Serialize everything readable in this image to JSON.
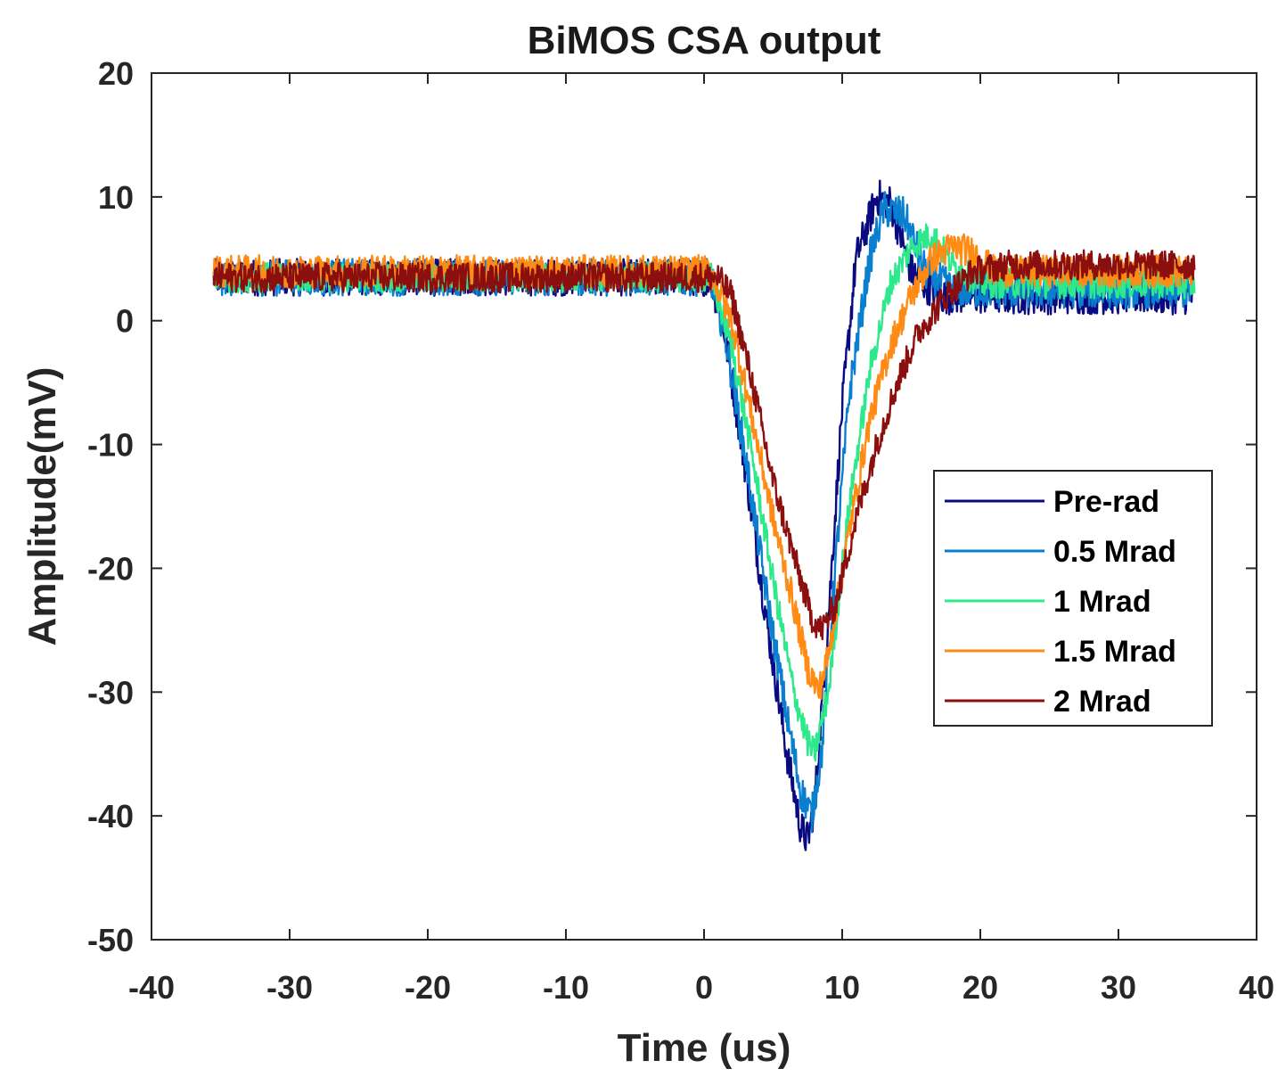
{
  "chart_data": {
    "type": "line",
    "title": "BiMOS CSA output",
    "xlabel": "Time (us)",
    "ylabel": "Amplitude(mV)",
    "xlim": [
      -40,
      40
    ],
    "ylim": [
      -50,
      20
    ],
    "xticks": [
      -40,
      -30,
      -20,
      -10,
      0,
      10,
      20,
      30,
      40
    ],
    "yticks": [
      -50,
      -40,
      -30,
      -20,
      -10,
      0,
      10,
      20
    ],
    "grid": false,
    "legend_position": "right",
    "x_range_data": [
      -35.5,
      35.5
    ],
    "series": [
      {
        "name": "Pre-rad",
        "color": "#0a0a80",
        "noise": 1.5,
        "points": [
          [
            -35.5,
            3.5
          ],
          [
            0.5,
            3.5
          ],
          [
            1.5,
            -1
          ],
          [
            3,
            -12
          ],
          [
            4.5,
            -24
          ],
          [
            6,
            -35
          ],
          [
            7,
            -41
          ],
          [
            7.5,
            -42
          ],
          [
            8,
            -39
          ],
          [
            9,
            -24
          ],
          [
            10,
            -7
          ],
          [
            11,
            5
          ],
          [
            12.5,
            10
          ],
          [
            13.5,
            9.5
          ],
          [
            15,
            4
          ],
          [
            17,
            2
          ],
          [
            20,
            2
          ],
          [
            35.5,
            2
          ]
        ]
      },
      {
        "name": "0.5 Mrad",
        "color": "#0a7fd0",
        "noise": 1.5,
        "points": [
          [
            -35.5,
            3.5
          ],
          [
            0.5,
            3.5
          ],
          [
            1.5,
            -1
          ],
          [
            3,
            -11
          ],
          [
            4.5,
            -22
          ],
          [
            6,
            -32
          ],
          [
            7,
            -38
          ],
          [
            7.8,
            -40
          ],
          [
            8.5,
            -35
          ],
          [
            9.5,
            -20
          ],
          [
            10.5,
            -6
          ],
          [
            12,
            5
          ],
          [
            13,
            9
          ],
          [
            14.5,
            8.5
          ],
          [
            16,
            4
          ],
          [
            18,
            2.5
          ],
          [
            35.5,
            2.5
          ]
        ]
      },
      {
        "name": "1 Mrad",
        "color": "#2ee88c",
        "noise": 1.2,
        "points": [
          [
            -35.5,
            3.5
          ],
          [
            0.5,
            3.5
          ],
          [
            2,
            -2
          ],
          [
            3.5,
            -11
          ],
          [
            5,
            -21
          ],
          [
            6.5,
            -30
          ],
          [
            7.5,
            -34
          ],
          [
            8,
            -35
          ],
          [
            9,
            -30
          ],
          [
            10.5,
            -15
          ],
          [
            12,
            -4
          ],
          [
            13.5,
            3
          ],
          [
            15,
            6
          ],
          [
            16.5,
            7
          ],
          [
            18,
            4.5
          ],
          [
            20,
            3
          ],
          [
            35.5,
            3
          ]
        ]
      },
      {
        "name": "1.5 Mrad",
        "color": "#ff8a14",
        "noise": 1.3,
        "points": [
          [
            -35.5,
            4
          ],
          [
            0.5,
            4
          ],
          [
            2,
            0
          ],
          [
            3.5,
            -8
          ],
          [
            5,
            -16
          ],
          [
            6.5,
            -23
          ],
          [
            7.5,
            -28
          ],
          [
            8.3,
            -30
          ],
          [
            9,
            -27
          ],
          [
            10.5,
            -17
          ],
          [
            12,
            -8
          ],
          [
            13.5,
            -2
          ],
          [
            15,
            2
          ],
          [
            16.5,
            5
          ],
          [
            18,
            6
          ],
          [
            19.5,
            5.5
          ],
          [
            21,
            4
          ],
          [
            35.5,
            4
          ]
        ]
      },
      {
        "name": "2 Mrad",
        "color": "#8b0f0f",
        "noise": 1.2,
        "points": [
          [
            -35.5,
            3.5
          ],
          [
            1,
            3.5
          ],
          [
            2,
            2
          ],
          [
            3.5,
            -5
          ],
          [
            5,
            -13
          ],
          [
            6.5,
            -19
          ],
          [
            7.8,
            -24
          ],
          [
            8.5,
            -25
          ],
          [
            9.5,
            -23
          ],
          [
            11,
            -16
          ],
          [
            12.5,
            -10
          ],
          [
            14,
            -5
          ],
          [
            15.5,
            -1
          ],
          [
            17.5,
            2
          ],
          [
            19.5,
            4
          ],
          [
            22,
            4.5
          ],
          [
            35.5,
            4.5
          ]
        ]
      }
    ]
  }
}
